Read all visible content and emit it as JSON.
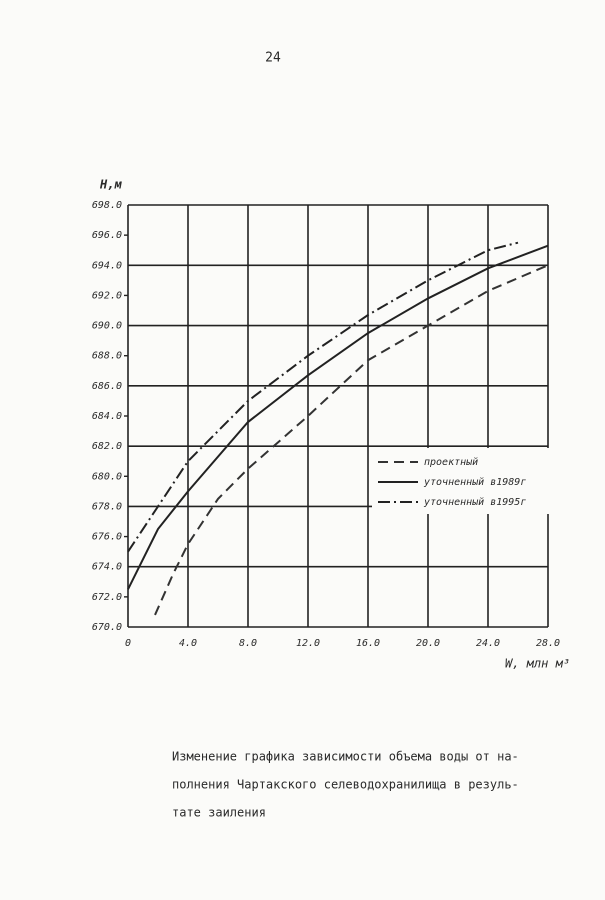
{
  "page_number": "24",
  "chart_data": {
    "type": "line",
    "y_label": "H,м",
    "x_label": "W, млн м³",
    "xlim": [
      0,
      28
    ],
    "ylim": [
      670,
      698
    ],
    "xticks": [
      0,
      {
        "value": 4,
        "label": "4.0"
      },
      {
        "value": 8,
        "label": "8.0"
      },
      {
        "value": 12,
        "label": "12.0"
      },
      {
        "value": 16,
        "label": "16.0"
      },
      {
        "value": 20,
        "label": "20.0"
      },
      {
        "value": 24,
        "label": "24.0"
      },
      {
        "value": 28,
        "label": "28.0"
      }
    ],
    "yticks": [
      {
        "value": 670,
        "label": "670.0"
      },
      {
        "value": 672,
        "label": "672.0"
      },
      {
        "value": 674,
        "label": "674.0"
      },
      {
        "value": 676,
        "label": "676.0"
      },
      {
        "value": 678,
        "label": "678.0"
      },
      {
        "value": 680,
        "label": "680.0"
      },
      {
        "value": 682,
        "label": "682.0"
      },
      {
        "value": 684,
        "label": "684.0"
      },
      {
        "value": 686,
        "label": "686.0"
      },
      {
        "value": 688,
        "label": "688.0"
      },
      {
        "value": 690,
        "label": "690.0"
      },
      {
        "value": 692,
        "label": "692.0"
      },
      {
        "value": 694,
        "label": "694.0"
      },
      {
        "value": 696,
        "label": "696.0"
      },
      {
        "value": 698,
        "label": "698.0"
      }
    ],
    "grid": true,
    "series": [
      {
        "name": "проектный",
        "color": "#333333",
        "dash": "dashed",
        "x": [
          1.8,
          3,
          4,
          6,
          8,
          12,
          16,
          20,
          24,
          28
        ],
        "values": [
          670.8,
          673.5,
          675.5,
          678.5,
          680.5,
          684,
          687.7,
          690,
          692.3,
          694
        ]
      },
      {
        "name": "уточненный в1989г",
        "color": "#222222",
        "dash": "solid",
        "x": [
          0,
          2,
          4,
          8,
          12,
          16,
          20,
          24,
          28
        ],
        "values": [
          672.5,
          676.5,
          679,
          683.6,
          686.7,
          689.5,
          691.8,
          693.8,
          695.3
        ]
      },
      {
        "name": "уточненный в1995г",
        "color": "#222222",
        "dash": "dashdot",
        "x": [
          0,
          2,
          4,
          8,
          12,
          16,
          20,
          24,
          26
        ],
        "values": [
          675,
          678,
          681,
          685,
          688,
          690.7,
          693,
          695,
          695.5
        ]
      }
    ]
  },
  "caption": [
    "Изменение графика зависимости объема воды от на-",
    "полнения Чартакского селеводохранилища в резуль-",
    "тате заиления"
  ]
}
